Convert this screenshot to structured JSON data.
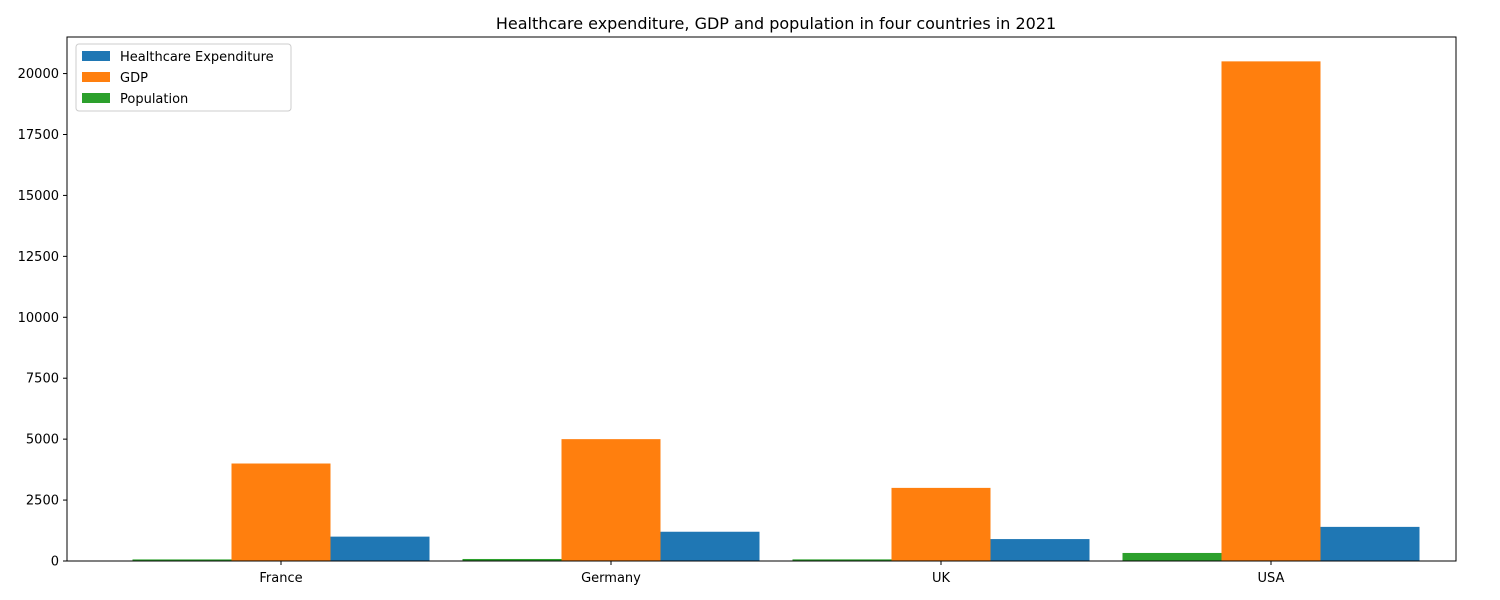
{
  "chart_data": {
    "type": "bar",
    "title": "Healthcare expenditure, GDP and population in four countries in 2021",
    "xlabel": "",
    "ylabel": "",
    "categories": [
      "France",
      "Germany",
      "UK",
      "USA"
    ],
    "series": [
      {
        "name": "Healthcare Expenditure",
        "color": "#1f77b4",
        "values": [
          1000,
          1200,
          900,
          1400
        ]
      },
      {
        "name": "GDP",
        "color": "#ff7f0e",
        "values": [
          4000,
          5000,
          3000,
          20500
        ]
      },
      {
        "name": "Population",
        "color": "#2ca02c",
        "values": [
          65,
          83,
          67,
          330
        ]
      }
    ],
    "ylim": [
      0,
      21500
    ],
    "yticks": [
      0,
      2500,
      5000,
      7500,
      10000,
      12500,
      15000,
      17500,
      20000
    ],
    "grid": false,
    "legend": "top-left"
  }
}
